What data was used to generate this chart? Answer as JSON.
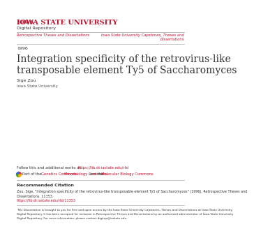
{
  "bg_color": "#ffffff",
  "isu_red": "#c8102e",
  "text_dark": "#333333",
  "text_gray": "#555555",
  "university_name": "Iowa State University",
  "digital_repository": "Digital Repository",
  "left_nav": "Retrospective Theses and Dissertations",
  "right_nav_line1": "Iowa State University Capstones, Theses and",
  "right_nav_line2": "Dissertations",
  "year": "1996",
  "title_line1": "Integration specificity of the retrovirus-like",
  "title_line2": "transposable element Ty5 of Saccharomyces",
  "author": "Sige Zou",
  "institution": "Iowa State University",
  "follow_link": "https://lib.dr.iastate.edu/rtd",
  "part_link1": "Genetics Commons",
  "part_link2": "Microbiology Commons",
  "part_link3": "Molecular Biology Commons",
  "rec_citation": "Recommended Citation",
  "citation_body1": "Zou, Sige, \"Integration specificity of the retrovirus-like transposable element Ty5 of Saccharomyces\" (1996). Retrospective Theses and",
  "citation_body2": "Dissertations. 11353.",
  "citation_link": "https://lib.dr.iastate.edu/rtd/11353",
  "disclaimer": "This Dissertation is brought to you for free and open access by the Iowa State University Capstones, Theses and Dissertations at Iowa State University Digital Repository. It has been accepted for inclusion in Retrospective Theses and Dissertations by an authorized administrator of Iowa State University Digital Repository. For more information, please contact digirep@iastate.edu."
}
